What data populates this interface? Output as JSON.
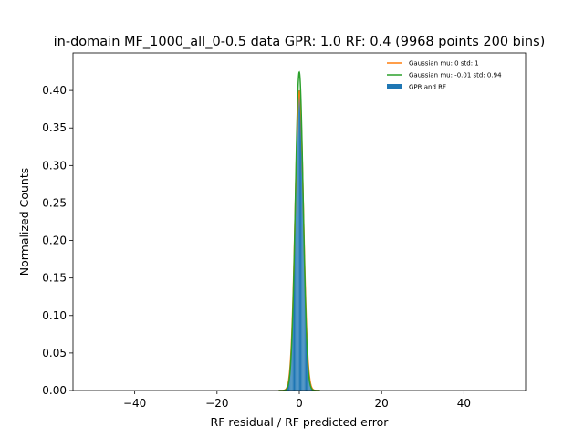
{
  "chart_data": {
    "type": "histogram",
    "title": "in-domain MF_1000_all_0-0.5 data GPR: 1.0 RF: 0.4 (9968 points 200 bins)",
    "xlabel": "RF residual / RF predicted error",
    "ylabel": "Normalized Counts",
    "xlim": [
      -55,
      55
    ],
    "ylim": [
      0,
      0.45
    ],
    "xticks": [
      -40,
      -20,
      0,
      20,
      40
    ],
    "xtick_labels": [
      "−40",
      "−20",
      "0",
      "20",
      "40"
    ],
    "yticks": [
      0.0,
      0.05,
      0.1,
      0.15,
      0.2,
      0.25,
      0.3,
      0.35,
      0.4
    ],
    "ytick_labels": [
      "0.00",
      "0.05",
      "0.10",
      "0.15",
      "0.20",
      "0.25",
      "0.30",
      "0.35",
      "0.40"
    ],
    "histogram": {
      "name": "GPR and RF",
      "color": "#1f77b4",
      "bin_width": 0.12,
      "range": [
        -3.5,
        3.5
      ],
      "mu": -0.01,
      "std": 0.94,
      "peak": 0.4
    },
    "series": [
      {
        "name": "Gaussian mu: 0 std: 1",
        "type": "line",
        "mu": 0,
        "std": 1,
        "color": "#ff7f0e"
      },
      {
        "name": "Gaussian mu: -0.01 std: 0.94",
        "type": "line",
        "mu": -0.01,
        "std": 0.94,
        "color": "#2ca02c"
      }
    ],
    "legend": {
      "position": "upper-right",
      "entries": [
        {
          "label": "Gaussian mu: 0 std: 1",
          "kind": "line",
          "color": "#ff7f0e"
        },
        {
          "label": "Gaussian mu: -0.01 std: 0.94",
          "kind": "line",
          "color": "#2ca02c"
        },
        {
          "label": "GPR and RF",
          "kind": "patch",
          "color": "#1f77b4"
        }
      ]
    }
  }
}
